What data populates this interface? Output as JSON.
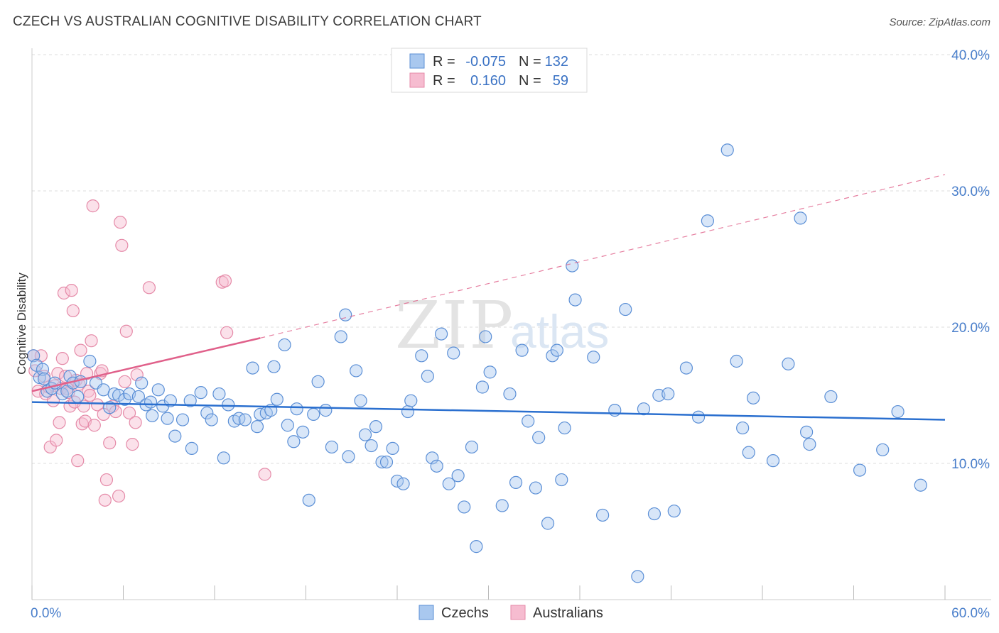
{
  "header": {
    "title": "CZECH VS AUSTRALIAN COGNITIVE DISABILITY CORRELATION CHART",
    "source": "Source: ZipAtlas.com"
  },
  "watermark": {
    "part1": "ZIP",
    "part2": "atlas"
  },
  "colors": {
    "czech_fill": "#a9c8ef",
    "czech_stroke": "#5b8fd6",
    "czech_line": "#2a6fcf",
    "aus_fill": "#f6bcd0",
    "aus_stroke": "#e58aa8",
    "aus_line": "#e0608a",
    "tick_label": "#4a7fcb",
    "grid": "#dddddd"
  },
  "legend": {
    "rows": [
      {
        "r_label": "R =",
        "r_value": "-0.075",
        "n_label": "N =",
        "n_value": "132"
      },
      {
        "r_label": "R =",
        "r_value": "0.160",
        "n_label": "N =",
        "n_value": "59"
      }
    ]
  },
  "bottom_legend": {
    "czech": "Czechs",
    "aus": "Australians"
  },
  "chart_data": {
    "type": "scatter",
    "title": "CZECH VS AUSTRALIAN COGNITIVE DISABILITY CORRELATION CHART",
    "xlabel": "",
    "ylabel": "Cognitive Disability",
    "xlim": [
      0,
      60
    ],
    "ylim": [
      0,
      40
    ],
    "x_tick_labels": [
      "0.0%",
      "60.0%"
    ],
    "y_ticks": [
      10,
      20,
      30,
      40
    ],
    "y_tick_labels": [
      "10.0%",
      "20.0%",
      "30.0%",
      "40.0%"
    ],
    "grid": true,
    "legend_position": "top-center",
    "series": [
      {
        "name": "Czechs",
        "r": -0.075,
        "n": 132,
        "trend": {
          "x": [
            0,
            60
          ],
          "y": [
            14.5,
            13.2
          ],
          "style": "solid"
        },
        "points": [
          [
            0.1,
            17.9
          ],
          [
            0.3,
            17.2
          ],
          [
            0.5,
            16.3
          ],
          [
            0.7,
            16.9
          ],
          [
            0.8,
            16.2
          ],
          [
            1.0,
            15.3
          ],
          [
            1.3,
            15.5
          ],
          [
            1.5,
            15.9
          ],
          [
            2.0,
            15.1
          ],
          [
            2.3,
            15.3
          ],
          [
            2.5,
            16.4
          ],
          [
            2.7,
            15.9
          ],
          [
            3.0,
            14.9
          ],
          [
            3.2,
            16.0
          ],
          [
            3.8,
            17.5
          ],
          [
            4.2,
            15.9
          ],
          [
            4.7,
            15.4
          ],
          [
            5.1,
            14.1
          ],
          [
            5.4,
            15.1
          ],
          [
            5.7,
            15.0
          ],
          [
            6.1,
            14.7
          ],
          [
            6.4,
            15.1
          ],
          [
            7.0,
            14.9
          ],
          [
            7.2,
            15.9
          ],
          [
            7.5,
            14.3
          ],
          [
            7.8,
            14.5
          ],
          [
            7.9,
            13.5
          ],
          [
            8.3,
            15.4
          ],
          [
            8.6,
            14.2
          ],
          [
            8.9,
            13.3
          ],
          [
            9.1,
            14.6
          ],
          [
            9.4,
            12.0
          ],
          [
            9.9,
            13.2
          ],
          [
            10.4,
            14.6
          ],
          [
            10.5,
            11.1
          ],
          [
            11.1,
            15.2
          ],
          [
            11.5,
            13.7
          ],
          [
            11.8,
            13.2
          ],
          [
            12.3,
            15.1
          ],
          [
            12.6,
            10.4
          ],
          [
            12.9,
            14.3
          ],
          [
            13.3,
            13.1
          ],
          [
            13.6,
            13.3
          ],
          [
            14.0,
            13.2
          ],
          [
            14.5,
            17.0
          ],
          [
            14.8,
            12.7
          ],
          [
            15.0,
            13.6
          ],
          [
            15.4,
            13.7
          ],
          [
            15.7,
            13.9
          ],
          [
            15.9,
            17.1
          ],
          [
            16.1,
            14.7
          ],
          [
            16.6,
            18.7
          ],
          [
            16.8,
            12.8
          ],
          [
            17.2,
            11.6
          ],
          [
            17.4,
            14.0
          ],
          [
            17.8,
            12.3
          ],
          [
            18.2,
            7.3
          ],
          [
            18.5,
            13.6
          ],
          [
            18.8,
            16.0
          ],
          [
            19.3,
            13.9
          ],
          [
            19.7,
            11.2
          ],
          [
            20.3,
            19.3
          ],
          [
            20.6,
            20.9
          ],
          [
            20.8,
            10.5
          ],
          [
            21.3,
            16.8
          ],
          [
            21.6,
            14.6
          ],
          [
            21.9,
            12.1
          ],
          [
            22.3,
            11.3
          ],
          [
            22.6,
            12.7
          ],
          [
            23.0,
            10.1
          ],
          [
            23.3,
            10.1
          ],
          [
            23.7,
            11.1
          ],
          [
            24.0,
            8.7
          ],
          [
            24.4,
            8.5
          ],
          [
            24.7,
            13.8
          ],
          [
            24.9,
            14.6
          ],
          [
            25.6,
            17.9
          ],
          [
            26.0,
            16.4
          ],
          [
            26.3,
            10.4
          ],
          [
            26.6,
            9.8
          ],
          [
            26.9,
            19.5
          ],
          [
            27.4,
            8.5
          ],
          [
            27.7,
            18.1
          ],
          [
            28.0,
            9.1
          ],
          [
            28.4,
            6.8
          ],
          [
            28.9,
            11.2
          ],
          [
            29.2,
            3.9
          ],
          [
            29.6,
            15.6
          ],
          [
            29.8,
            19.3
          ],
          [
            30.1,
            16.7
          ],
          [
            30.9,
            6.9
          ],
          [
            31.4,
            15.1
          ],
          [
            31.8,
            8.6
          ],
          [
            32.2,
            18.3
          ],
          [
            32.6,
            13.1
          ],
          [
            33.1,
            8.2
          ],
          [
            33.3,
            11.9
          ],
          [
            33.9,
            5.6
          ],
          [
            34.2,
            17.9
          ],
          [
            34.5,
            18.3
          ],
          [
            34.8,
            8.8
          ],
          [
            35.0,
            12.6
          ],
          [
            35.5,
            24.5
          ],
          [
            35.7,
            22.0
          ],
          [
            36.9,
            17.8
          ],
          [
            37.5,
            6.2
          ],
          [
            38.3,
            13.9
          ],
          [
            39.0,
            21.3
          ],
          [
            39.8,
            1.7
          ],
          [
            40.2,
            14.0
          ],
          [
            40.9,
            6.3
          ],
          [
            41.2,
            15.0
          ],
          [
            41.8,
            15.1
          ],
          [
            42.2,
            6.5
          ],
          [
            43.0,
            17.0
          ],
          [
            43.8,
            13.4
          ],
          [
            44.4,
            27.8
          ],
          [
            45.7,
            33.0
          ],
          [
            46.3,
            17.5
          ],
          [
            46.7,
            12.6
          ],
          [
            47.1,
            10.8
          ],
          [
            47.4,
            14.8
          ],
          [
            48.7,
            10.2
          ],
          [
            49.7,
            17.3
          ],
          [
            50.5,
            28.0
          ],
          [
            50.9,
            12.3
          ],
          [
            51.1,
            11.4
          ],
          [
            52.5,
            14.9
          ],
          [
            54.4,
            9.5
          ],
          [
            55.9,
            11.0
          ],
          [
            56.9,
            13.8
          ],
          [
            58.4,
            8.4
          ]
        ]
      },
      {
        "name": "Australians",
        "r": 0.16,
        "n": 59,
        "trend": {
          "x": [
            0,
            15.0
          ],
          "y": [
            15.3,
            19.2
          ],
          "style": "solid",
          "extended": {
            "x": [
              15.0,
              60
            ],
            "y": [
              19.2,
              31.2
            ],
            "style": "dashed"
          }
        },
        "points": [
          [
            0.1,
            17.9
          ],
          [
            0.2,
            16.8
          ],
          [
            0.4,
            15.3
          ],
          [
            0.6,
            17.9
          ],
          [
            0.8,
            16.4
          ],
          [
            0.9,
            15.1
          ],
          [
            1.1,
            15.6
          ],
          [
            1.2,
            11.2
          ],
          [
            1.4,
            14.6
          ],
          [
            1.5,
            15.7
          ],
          [
            1.6,
            11.7
          ],
          [
            1.7,
            16.6
          ],
          [
            1.8,
            13.0
          ],
          [
            1.9,
            15.5
          ],
          [
            2.0,
            17.7
          ],
          [
            2.1,
            22.5
          ],
          [
            2.2,
            16.4
          ],
          [
            2.3,
            15.5
          ],
          [
            2.4,
            15.2
          ],
          [
            2.5,
            14.2
          ],
          [
            2.6,
            22.7
          ],
          [
            2.7,
            21.2
          ],
          [
            2.8,
            14.5
          ],
          [
            2.9,
            16.1
          ],
          [
            3.0,
            10.2
          ],
          [
            3.1,
            15.8
          ],
          [
            3.2,
            18.3
          ],
          [
            3.3,
            12.9
          ],
          [
            3.4,
            14.2
          ],
          [
            3.5,
            13.1
          ],
          [
            3.6,
            16.6
          ],
          [
            3.7,
            15.3
          ],
          [
            3.8,
            15.0
          ],
          [
            3.9,
            19.0
          ],
          [
            4.0,
            28.9
          ],
          [
            4.1,
            12.8
          ],
          [
            4.3,
            14.3
          ],
          [
            4.5,
            16.6
          ],
          [
            4.6,
            16.8
          ],
          [
            4.7,
            13.6
          ],
          [
            4.8,
            7.3
          ],
          [
            4.9,
            8.8
          ],
          [
            5.1,
            11.5
          ],
          [
            5.3,
            14.2
          ],
          [
            5.5,
            13.8
          ],
          [
            5.7,
            7.6
          ],
          [
            5.8,
            27.7
          ],
          [
            5.9,
            26.0
          ],
          [
            6.1,
            16.0
          ],
          [
            6.2,
            19.7
          ],
          [
            6.4,
            13.7
          ],
          [
            6.6,
            11.4
          ],
          [
            6.8,
            13.0
          ],
          [
            6.9,
            16.5
          ],
          [
            7.7,
            22.9
          ],
          [
            12.5,
            23.3
          ],
          [
            12.7,
            23.4
          ],
          [
            12.8,
            19.6
          ],
          [
            15.3,
            9.2
          ]
        ]
      }
    ]
  }
}
